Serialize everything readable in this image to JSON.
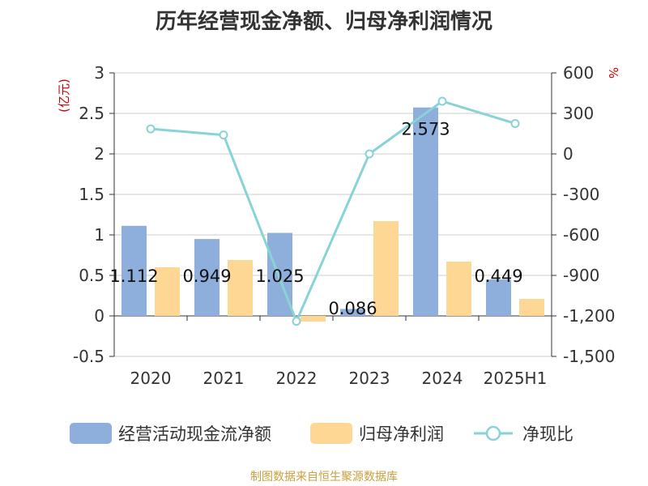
{
  "title": "历年经营现金净额、归母净利润情况",
  "footer": "制图数据来自恒生聚源数据库",
  "chart_data": {
    "type": "bar",
    "categories": [
      "2020",
      "2021",
      "2022",
      "2023",
      "2024",
      "2025H1"
    ],
    "series": [
      {
        "name": "经营活动现金流净额",
        "type": "bar",
        "axis": "left",
        "color": "#8eaedc",
        "values": [
          1.112,
          0.949,
          1.025,
          0.086,
          2.573,
          0.449
        ],
        "labels": [
          "1.112",
          "0.949",
          "1.025",
          "0.086",
          "2.573",
          "0.449"
        ]
      },
      {
        "name": "归母净利润",
        "type": "bar",
        "axis": "left",
        "color": "#fed795",
        "values": [
          0.6,
          0.69,
          -0.07,
          1.17,
          0.67,
          0.21
        ]
      },
      {
        "name": "净现比",
        "type": "line",
        "axis": "right",
        "color": "#88d3d5",
        "values": [
          185,
          140,
          -1240,
          0,
          390,
          225
        ]
      }
    ],
    "y_left": {
      "unit": "(亿元)",
      "min": -0.5,
      "max": 3,
      "ticks": [
        "-0.5",
        "0",
        "0.5",
        "1",
        "1.5",
        "2",
        "2.5",
        "3"
      ]
    },
    "y_right": {
      "unit": "%",
      "min": -1500,
      "max": 600,
      "ticks": [
        "-1,500",
        "-1,200",
        "-900",
        "-600",
        "-300",
        "0",
        "300",
        "600"
      ]
    },
    "grid": true,
    "legend_position": "bottom"
  }
}
